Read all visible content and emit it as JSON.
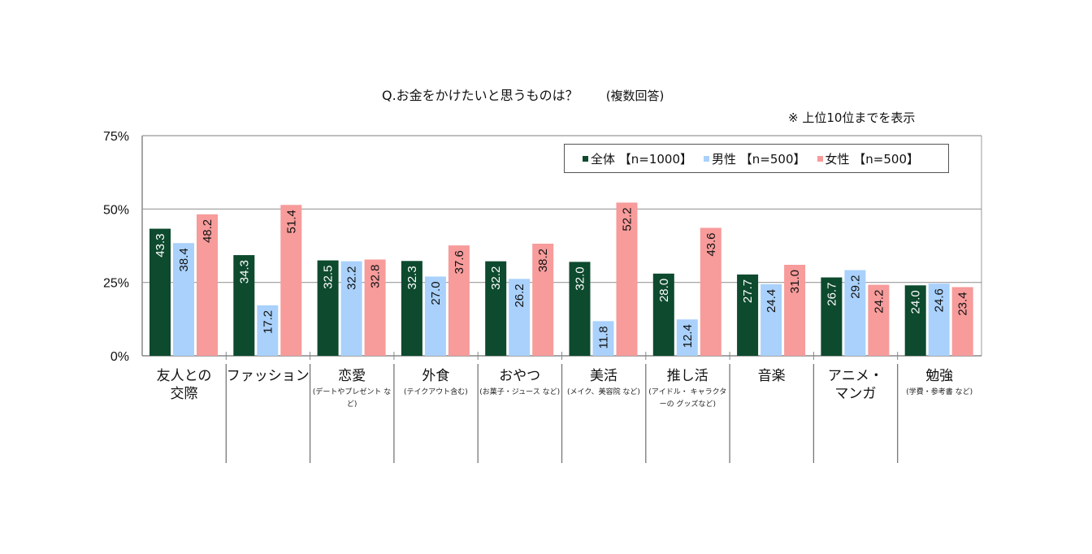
{
  "title": "Q.お金をかけたいと思うものは？",
  "title_sub": "(複数回答)",
  "note": "※ 上位10位までを表示",
  "colors": {
    "all": "#0d4a2e",
    "male": "#a9d1fb",
    "female": "#f79b9b"
  },
  "chart_data": {
    "type": "bar",
    "title": "Q.お金をかけたいと思うものは？ (複数回答)",
    "xlabel": "",
    "ylabel": "",
    "ylim": [
      0,
      75
    ],
    "yticks": [
      0,
      25,
      50,
      75
    ],
    "ytick_labels": [
      "0%",
      "25%",
      "50%",
      "75%"
    ],
    "grid": true,
    "legend_position": "top-right",
    "categories": [
      "友人との交際",
      "ファッション",
      "恋愛",
      "外食",
      "おやつ",
      "美活",
      "推し活",
      "音楽",
      "アニメ・マンガ",
      "勉強"
    ],
    "category_notes": [
      "",
      "",
      "(デートやプレゼントなど)",
      "(テイクアウト含む)",
      "(お菓子・ジュースなど)",
      "(メイク、美容院など)",
      "(アイドル・キャラクターのグッズなど)",
      "",
      "",
      "(学費・参考書など)"
    ],
    "series": [
      {
        "name": "全体【n=1000】",
        "color": "#0d4a2e",
        "label_color": "#ffffff",
        "values": [
          43.3,
          34.3,
          32.5,
          32.3,
          32.2,
          32.0,
          28.0,
          27.7,
          26.7,
          24.0
        ]
      },
      {
        "name": "男性【n=500】",
        "color": "#a9d1fb",
        "label_color": "#111111",
        "values": [
          38.4,
          17.2,
          32.2,
          27.0,
          26.2,
          11.8,
          12.4,
          24.4,
          29.2,
          24.6
        ]
      },
      {
        "name": "女性【n=500】",
        "color": "#f79b9b",
        "label_color": "#111111",
        "values": [
          48.2,
          51.4,
          32.8,
          37.6,
          38.2,
          52.2,
          43.6,
          31.0,
          24.2,
          23.4
        ]
      }
    ],
    "annotations": [
      "※ 上位10位までを表示"
    ]
  },
  "legend": [
    {
      "label": "全体 【n=1000】",
      "color": "#0d4a2e"
    },
    {
      "label": "男性 【n=500】",
      "color": "#a9d1fb"
    },
    {
      "label": "女性 【n=500】",
      "color": "#f79b9b"
    }
  ],
  "category_labels": [
    {
      "main": "友人との交際",
      "lines": [
        "友人との",
        "交際"
      ],
      "note": ""
    },
    {
      "main": "ファッション",
      "lines": [
        "ファッション"
      ],
      "note": ""
    },
    {
      "main": "恋愛",
      "lines": [
        "恋愛"
      ],
      "note": "(デートやプレゼント など)"
    },
    {
      "main": "外食",
      "lines": [
        "外食"
      ],
      "note": "(テイクアウト含む)"
    },
    {
      "main": "おやつ",
      "lines": [
        "おやつ"
      ],
      "note": "(お菓子・ジュース など)"
    },
    {
      "main": "美活",
      "lines": [
        "美活"
      ],
      "note": "(メイク、美容院 など)"
    },
    {
      "main": "推し活",
      "lines": [
        "推し活"
      ],
      "note": "(アイドル・ キャラクターの グッズなど)"
    },
    {
      "main": "音楽",
      "lines": [
        "音楽"
      ],
      "note": ""
    },
    {
      "main": "アニメ・マンガ",
      "lines": [
        "アニメ・",
        "マンガ"
      ],
      "note": ""
    },
    {
      "main": "勉強",
      "lines": [
        "勉強"
      ],
      "note": "(学費・参考書 など)"
    }
  ]
}
